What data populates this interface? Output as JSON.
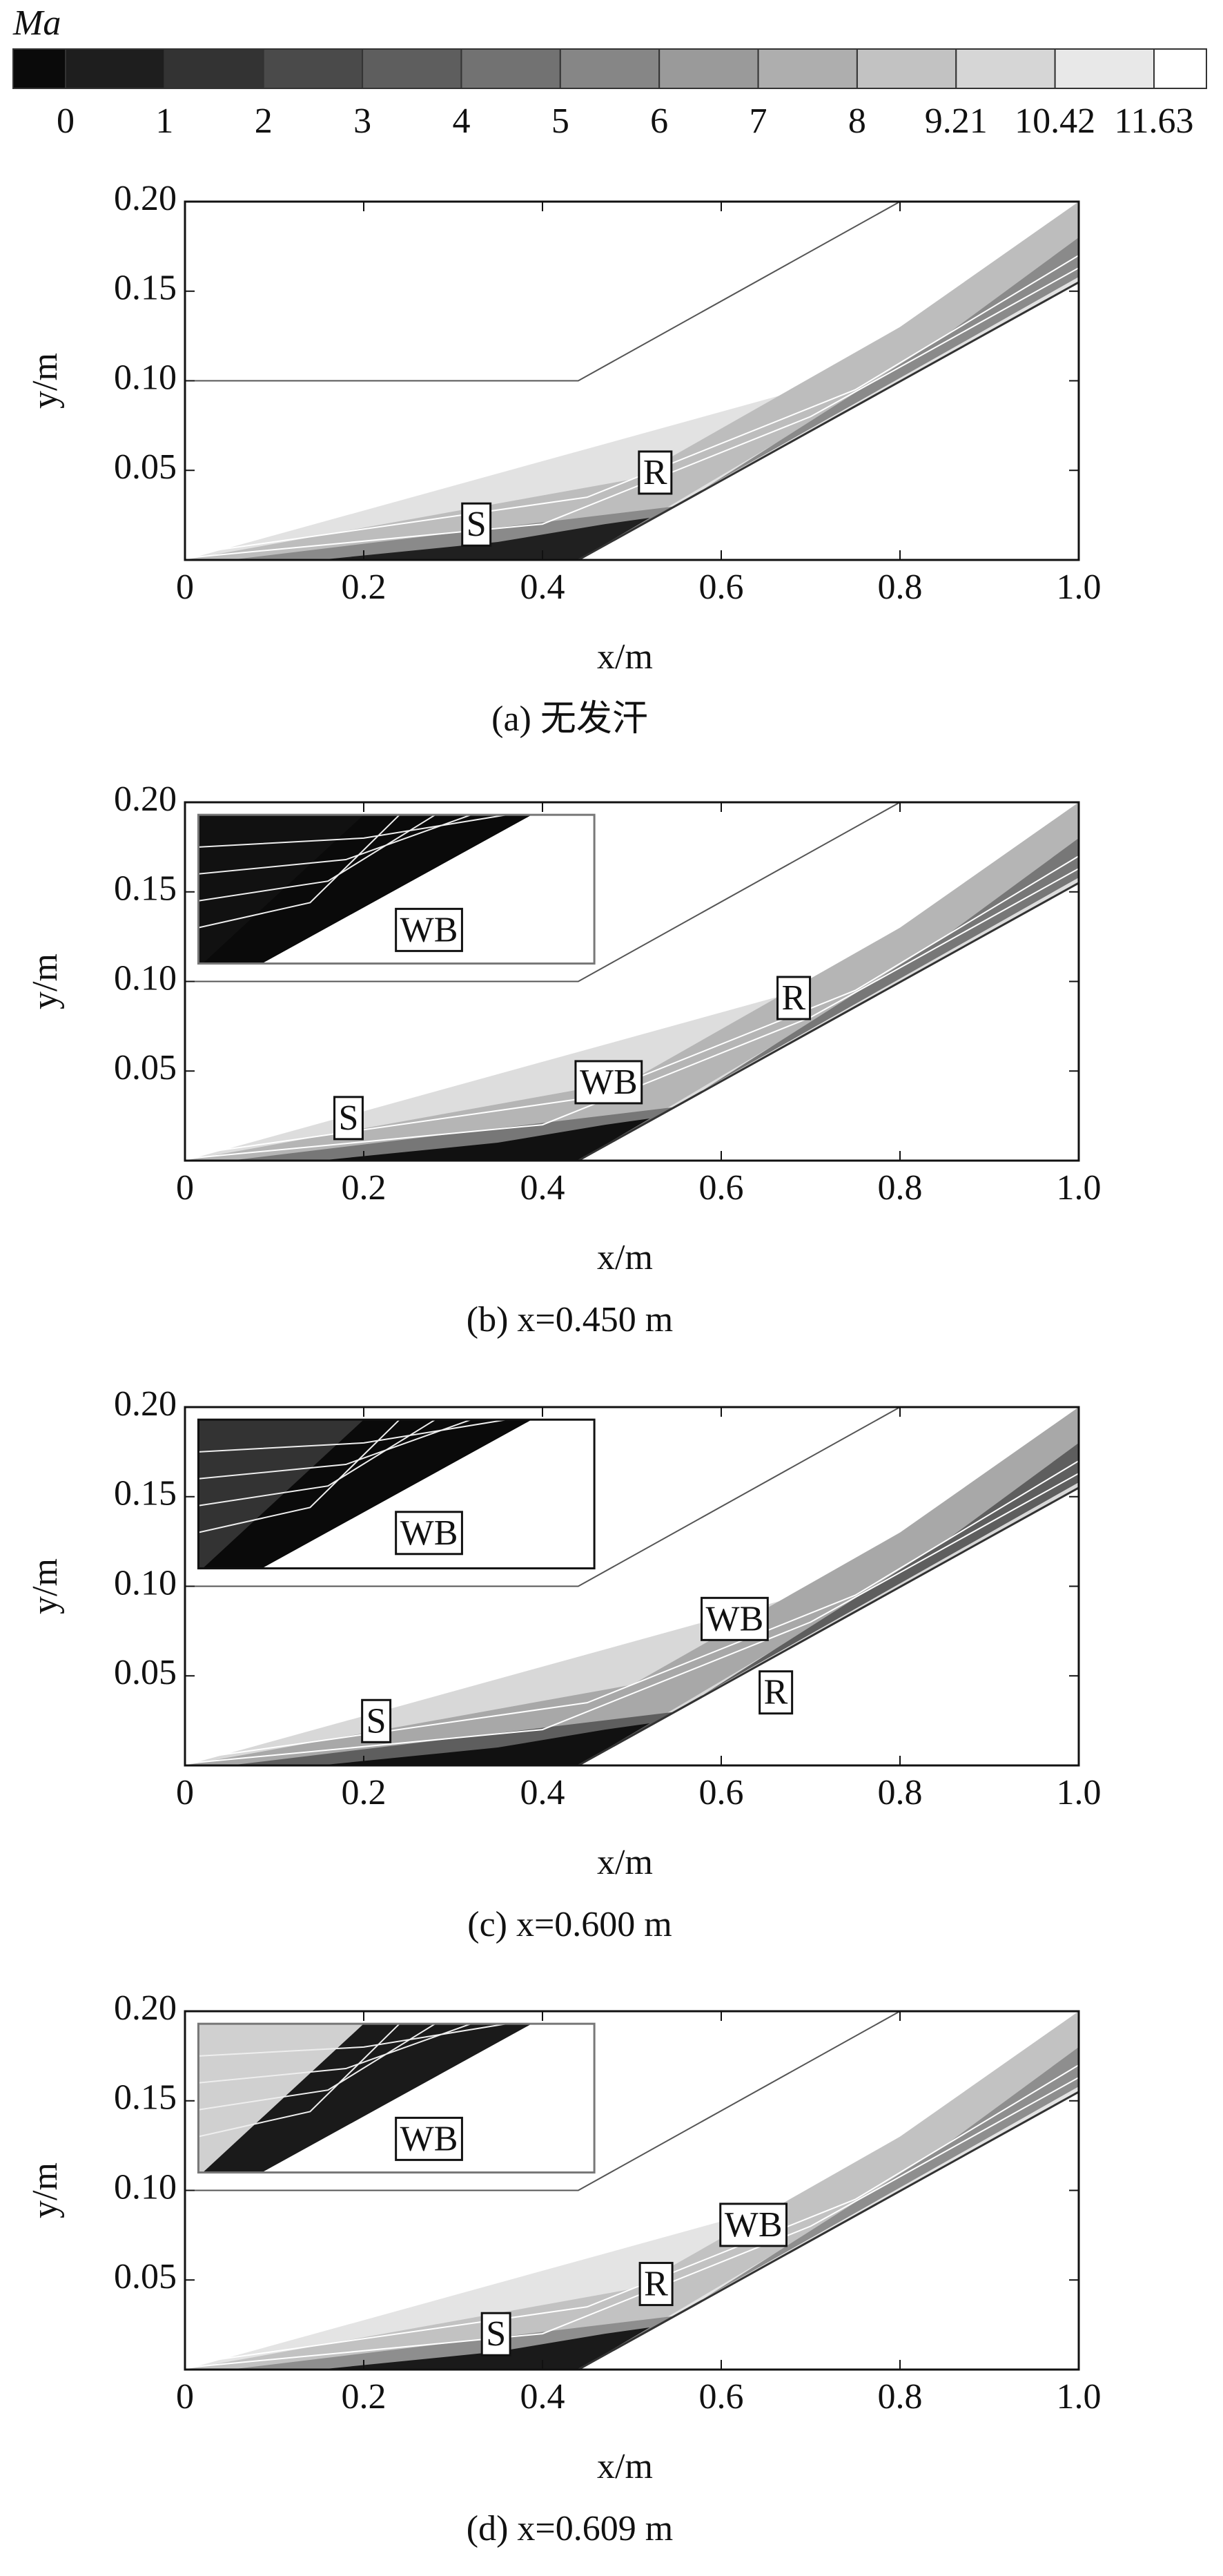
{
  "colorbar": {
    "title": "Ma",
    "ticks": [
      0,
      1,
      2,
      3,
      4,
      5,
      6,
      7,
      8,
      9.21,
      10.42,
      11.63
    ],
    "colors": [
      "#0a0a0a",
      "#1e1e1e",
      "#333333",
      "#4a4a4a",
      "#5e5e5e",
      "#727272",
      "#868686",
      "#9a9a9a",
      "#aeaeae",
      "#c2c2c2",
      "#d6d6d6",
      "#e8e8e8",
      "#ffffff"
    ]
  },
  "chart_data": [
    {
      "type": "contour",
      "xlabel": "x/m",
      "ylabel": "y/m",
      "caption": "(a) 无发汗",
      "xlim": [
        0,
        1
      ],
      "ylim": [
        0,
        0.2
      ],
      "xticks": [
        0,
        0.2,
        0.4,
        0.6,
        0.8,
        {
          "value": 1,
          "label": "1.0"
        }
      ],
      "yticks": [
        0.05,
        {
          "value": 0.1,
          "label": "0.10"
        },
        0.15,
        {
          "value": 0.2,
          "label": "0.20"
        }
      ],
      "annotations": [
        "R",
        "S"
      ],
      "inset": false
    },
    {
      "type": "contour",
      "xlabel": "x/m",
      "ylabel": "y/m",
      "caption": "(b) x=0.450 m",
      "xlim": [
        0,
        1
      ],
      "ylim": [
        0,
        0.2
      ],
      "xticks": [
        0,
        0.2,
        0.4,
        0.6,
        0.8,
        {
          "value": 1,
          "label": "1.0"
        }
      ],
      "yticks": [
        0.05,
        {
          "value": 0.1,
          "label": "0.10"
        },
        0.15,
        {
          "value": 0.2,
          "label": "0.20"
        }
      ],
      "annotations": [
        "WB",
        "R",
        "WB",
        "S"
      ],
      "inset": true
    },
    {
      "type": "contour",
      "xlabel": "x/m",
      "ylabel": "y/m",
      "caption": "(c) x=0.600 m",
      "xlim": [
        0,
        1
      ],
      "ylim": [
        0,
        0.2
      ],
      "xticks": [
        0,
        0.2,
        0.4,
        0.6,
        0.8,
        {
          "value": 1,
          "label": "1.0"
        }
      ],
      "yticks": [
        0.05,
        {
          "value": 0.1,
          "label": "0.10"
        },
        0.15,
        {
          "value": 0.2,
          "label": "0.20"
        }
      ],
      "annotations": [
        "WB",
        "WB",
        "R",
        "S"
      ],
      "inset": true
    },
    {
      "type": "contour",
      "xlabel": "x/m",
      "ylabel": "y/m",
      "caption": "(d) x=0.609 m",
      "xlim": [
        0,
        1
      ],
      "ylim": [
        0,
        0.2
      ],
      "xticks": [
        0,
        0.2,
        0.4,
        0.6,
        0.8,
        {
          "value": 1,
          "label": "1.0"
        }
      ],
      "yticks": [
        0.05,
        {
          "value": 0.1,
          "label": "0.10"
        },
        0.15,
        {
          "value": 0.2,
          "label": "0.20"
        }
      ],
      "annotations": [
        "WB",
        "WB",
        "R",
        "S"
      ],
      "inset": true
    }
  ]
}
